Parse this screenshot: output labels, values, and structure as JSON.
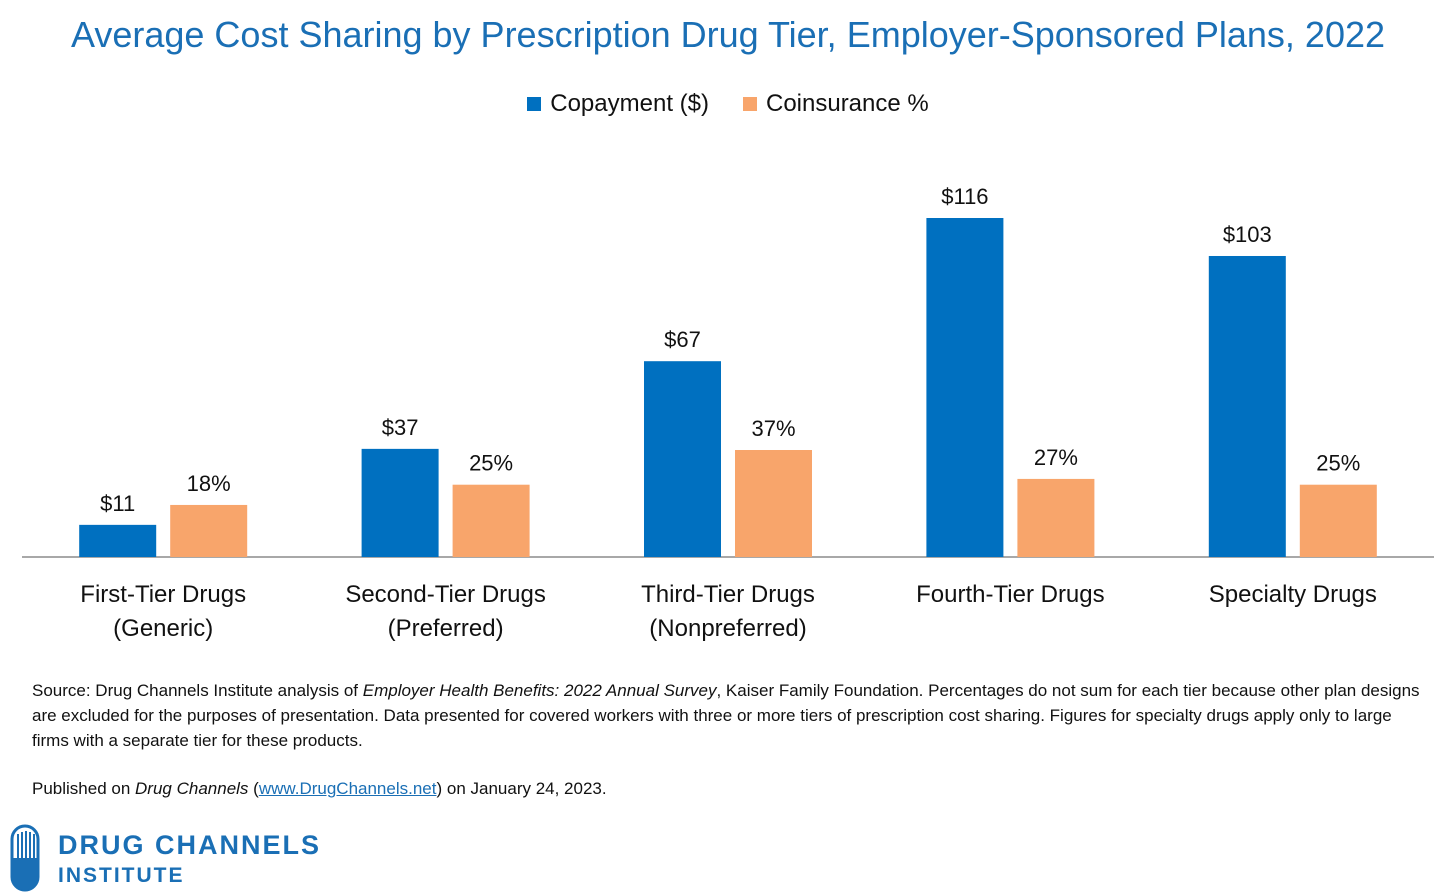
{
  "chart_data": {
    "type": "bar",
    "title": "Average Cost Sharing by Prescription Drug Tier, Employer-Sponsored Plans, 2022",
    "categories": [
      [
        "First-Tier Drugs",
        "(Generic)"
      ],
      [
        "Second-Tier Drugs",
        "(Preferred)"
      ],
      [
        "Third-Tier Drugs",
        "(Nonpreferred)"
      ],
      [
        "Fourth-Tier Drugs"
      ],
      [
        "Specialty Drugs"
      ]
    ],
    "series": [
      {
        "name": "Copayment ($)",
        "color": "#0070c0",
        "values": [
          11,
          37,
          67,
          116,
          103
        ],
        "labels": [
          "$11",
          "$37",
          "$67",
          "$116",
          "$103"
        ]
      },
      {
        "name": "Coinsurance %",
        "color": "#f8a56b",
        "values": [
          18,
          25,
          37,
          27,
          25
        ],
        "labels": [
          "18%",
          "25%",
          "37%",
          "27%",
          "25%"
        ]
      }
    ],
    "xlabel": "",
    "ylabel": "",
    "grid": false,
    "legend_position": "top-center"
  },
  "footer": {
    "source_prefix": "Source: Drug Channels Institute analysis of ",
    "source_italic": "Employer Health Benefits: 2022 Annual Survey",
    "source_suffix": ", Kaiser Family Foundation. Percentages do not sum for each tier because other plan designs are excluded for the purposes of presentation. Data presented for covered workers with three or more tiers of prescription cost sharing. Figures for specialty drugs apply only to large firms with a separate tier for these products.",
    "published_prefix": "Published on ",
    "published_italic": "Drug Channels",
    "published_open": " (",
    "published_link": "www.DrugChannels.net",
    "published_suffix": ") on January 24, 2023."
  },
  "logo": {
    "line1": "DRUG CHANNELS",
    "line2": "INSTITUTE",
    "color": "#1a6fb5"
  }
}
